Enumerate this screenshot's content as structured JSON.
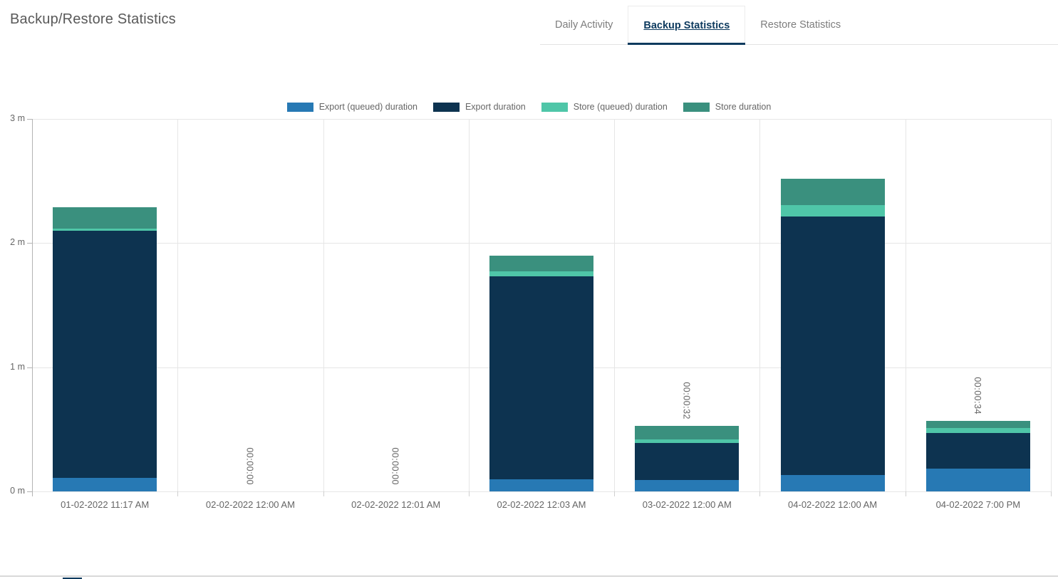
{
  "header": {
    "title": "Backup/Restore Statistics"
  },
  "tabs": [
    {
      "label": "Daily Activity",
      "active": false
    },
    {
      "label": "Backup Statistics",
      "active": true
    },
    {
      "label": "Restore Statistics",
      "active": false
    }
  ],
  "colors": {
    "accent_navy": "#0d3a5e",
    "tab_inactive_text": "#7d7d7d",
    "title_text": "#595959",
    "grid_line": "#e6e6e6",
    "axis_line": "#b3b3b3",
    "chart_text": "#666666",
    "series_export_queued": "#2779b4",
    "series_export": "#0d3350",
    "series_store_queued": "#4fc6a8",
    "series_store": "#3a907e"
  },
  "chart_data": {
    "type": "bar",
    "stacked": true,
    "unit": "seconds",
    "title": "",
    "xlabel": "",
    "ylabel": "",
    "legend_position": "top",
    "grid": true,
    "categories": [
      "01-02-2022 11:17 AM",
      "02-02-2022 12:00 AM",
      "02-02-2022 12:01 AM",
      "02-02-2022 12:03 AM",
      "03-02-2022 12:00 AM",
      "04-02-2022 12:00 AM",
      "04-02-2022 7:00 PM"
    ],
    "series": [
      {
        "name": "Export (queued) duration",
        "color": "#2779b4",
        "values": [
          6.5,
          0,
          0,
          5.8,
          5.5,
          8.0,
          10.9
        ]
      },
      {
        "name": "Export duration",
        "color": "#0d3350",
        "values": [
          119.4,
          0,
          0,
          98.0,
          17.8,
          124.9,
          17.3
        ]
      },
      {
        "name": "Store (queued) duration",
        "color": "#4fc6a8",
        "values": [
          1.2,
          0,
          0,
          2.5,
          1.9,
          5.5,
          2.3
        ]
      },
      {
        "name": "Store duration",
        "color": "#3a907e",
        "values": [
          10.1,
          0,
          0,
          7.5,
          6.3,
          12.7,
          3.6
        ]
      }
    ],
    "bar_labels": [
      "",
      "00:00:00",
      "00:00:00",
      "",
      "00:00:32",
      "",
      "00:00:34"
    ],
    "y_axis": {
      "ticks": [
        "0 m",
        "1 m",
        "2 m",
        "3 m"
      ],
      "min_minutes": 0,
      "max_minutes": 3
    }
  }
}
